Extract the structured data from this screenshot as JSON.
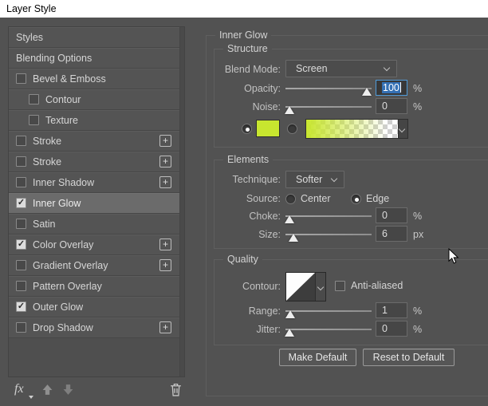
{
  "window": {
    "title": "Layer Style"
  },
  "colors": {
    "glow_color": "#c8e62f",
    "selection_blue": "#3470b4",
    "focus_border": "#4f9bd8",
    "dialog_bg": "#525252"
  },
  "sidebar": {
    "items": [
      {
        "label": "Styles",
        "checkbox": false,
        "checked": false,
        "indent": false,
        "plus": false,
        "selected": false
      },
      {
        "label": "Blending Options",
        "checkbox": false,
        "checked": false,
        "indent": false,
        "plus": false,
        "selected": false
      },
      {
        "label": "Bevel & Emboss",
        "checkbox": true,
        "checked": false,
        "indent": false,
        "plus": false,
        "selected": false
      },
      {
        "label": "Contour",
        "checkbox": true,
        "checked": false,
        "indent": true,
        "plus": false,
        "selected": false
      },
      {
        "label": "Texture",
        "checkbox": true,
        "checked": false,
        "indent": true,
        "plus": false,
        "selected": false
      },
      {
        "label": "Stroke",
        "checkbox": true,
        "checked": false,
        "indent": false,
        "plus": true,
        "selected": false
      },
      {
        "label": "Stroke",
        "checkbox": true,
        "checked": false,
        "indent": false,
        "plus": true,
        "selected": false
      },
      {
        "label": "Inner Shadow",
        "checkbox": true,
        "checked": false,
        "indent": false,
        "plus": true,
        "selected": false
      },
      {
        "label": "Inner Glow",
        "checkbox": true,
        "checked": true,
        "indent": false,
        "plus": false,
        "selected": true
      },
      {
        "label": "Satin",
        "checkbox": true,
        "checked": false,
        "indent": false,
        "plus": false,
        "selected": false
      },
      {
        "label": "Color Overlay",
        "checkbox": true,
        "checked": true,
        "indent": false,
        "plus": true,
        "selected": false
      },
      {
        "label": "Gradient Overlay",
        "checkbox": true,
        "checked": false,
        "indent": false,
        "plus": true,
        "selected": false
      },
      {
        "label": "Pattern Overlay",
        "checkbox": true,
        "checked": false,
        "indent": false,
        "plus": false,
        "selected": false
      },
      {
        "label": "Outer Glow",
        "checkbox": true,
        "checked": true,
        "indent": false,
        "plus": false,
        "selected": false
      },
      {
        "label": "Drop Shadow",
        "checkbox": true,
        "checked": false,
        "indent": false,
        "plus": true,
        "selected": false
      }
    ],
    "footer": {
      "fx_label": "fx"
    }
  },
  "panel": {
    "title": "Inner Glow",
    "structure": {
      "title": "Structure",
      "blend_mode": {
        "label": "Blend Mode:",
        "value": "Screen"
      },
      "opacity": {
        "label": "Opacity:",
        "value": "100",
        "unit": "%",
        "thumb_pct": 94,
        "focused": true
      },
      "noise": {
        "label": "Noise:",
        "value": "0",
        "unit": "%",
        "thumb_pct": 5
      }
    },
    "elements": {
      "title": "Elements",
      "technique": {
        "label": "Technique:",
        "value": "Softer"
      },
      "source": {
        "label": "Source:",
        "center_label": "Center",
        "edge_label": "Edge",
        "selected": "Edge"
      },
      "choke": {
        "label": "Choke:",
        "value": "0",
        "unit": "%",
        "thumb_pct": 5
      },
      "size": {
        "label": "Size:",
        "value": "6",
        "unit": "px",
        "thumb_pct": 9
      }
    },
    "quality": {
      "title": "Quality",
      "contour": {
        "label": "Contour:"
      },
      "anti_aliased": {
        "label": "Anti-aliased",
        "checked": false
      },
      "range": {
        "label": "Range:",
        "value": "1",
        "unit": "%",
        "thumb_pct": 6
      },
      "jitter": {
        "label": "Jitter:",
        "value": "0",
        "unit": "%",
        "thumb_pct": 5
      }
    },
    "buttons": {
      "make_default": "Make Default",
      "reset_default": "Reset to Default"
    }
  }
}
